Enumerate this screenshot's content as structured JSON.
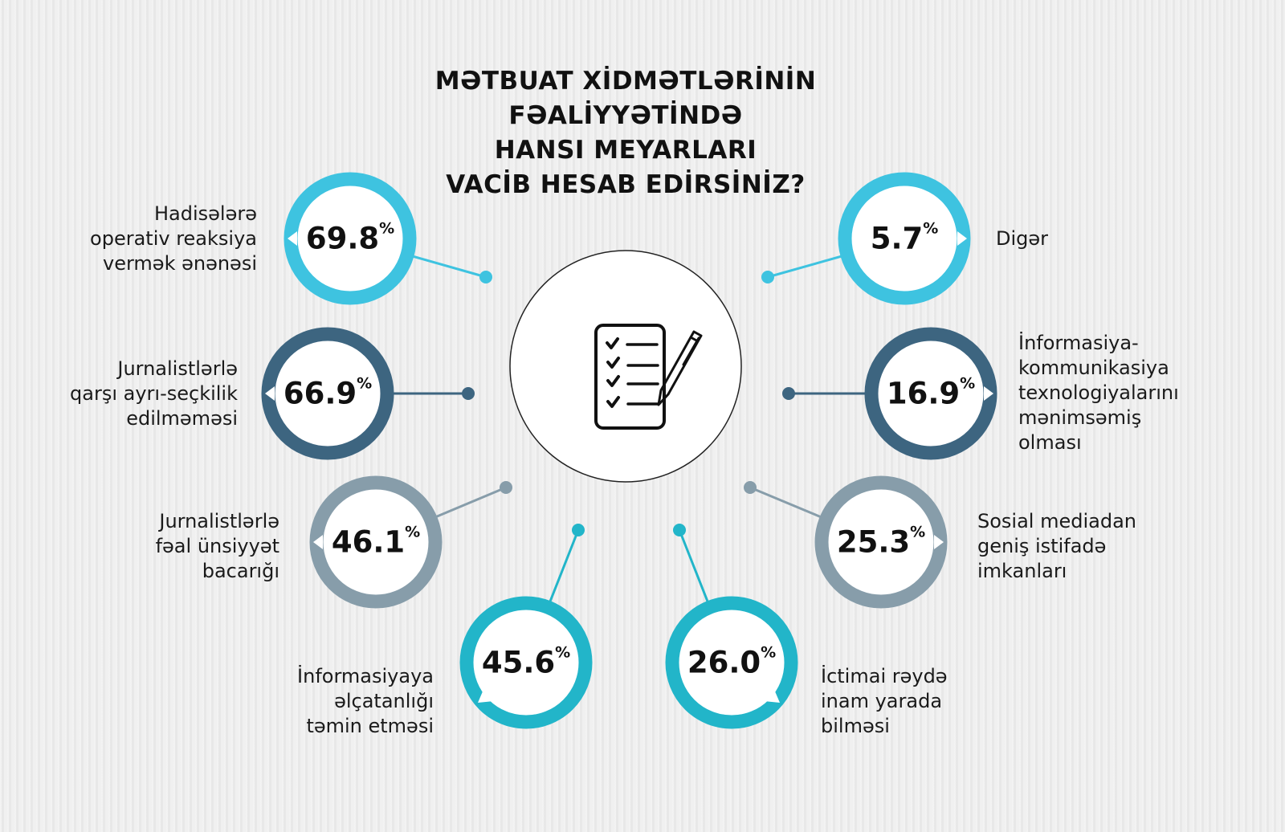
{
  "title_lines": [
    "MƏTBUAT XİDMƏTLƏRİNİN",
    "FƏALİYYƏTİNDƏ",
    "HANSI MEYARLARI",
    "VACİB HESAB EDİRSİNİZ?"
  ],
  "center_icon": "checklist-with-pen-icon",
  "chart_data": {
    "type": "radial-infographic",
    "unit": "%",
    "items": [
      {
        "label": [
          "Hadisələrə",
          "operativ reaksiya",
          "vermək ənənəsi"
        ],
        "value": 69.8,
        "color": "#3ec3e0"
      },
      {
        "label": [
          "Jurnalistlərlə",
          "qarşı ayrı-seçkilik",
          "edilməməsi"
        ],
        "value": 66.9,
        "color": "#3d6580"
      },
      {
        "label": [
          "Jurnalistlərlə",
          "fəal ünsiyyət",
          "bacarığı"
        ],
        "value": 46.1,
        "color": "#879daa"
      },
      {
        "label": [
          "İnformasiyaya",
          "əlçatanlığı",
          "təmin etməsi"
        ],
        "value": 45.6,
        "color": "#22b5c9"
      },
      {
        "label": [
          "İctimai rəydə",
          "inam yarada",
          "bilməsi"
        ],
        "value": 26.0,
        "color": "#22b5c9"
      },
      {
        "label": [
          "Sosial mediadan",
          "geniş istifadə",
          "imkanları"
        ],
        "value": 25.3,
        "color": "#879daa"
      },
      {
        "label": [
          "İnformasiya-",
          "kommunikasiya",
          "texnologiyalarını",
          "mənimsəmiş",
          "olması"
        ],
        "value": 16.9,
        "color": "#3d6580"
      },
      {
        "label": [
          "Digər"
        ],
        "value": 5.7,
        "color": "#3ec3e0"
      }
    ]
  }
}
